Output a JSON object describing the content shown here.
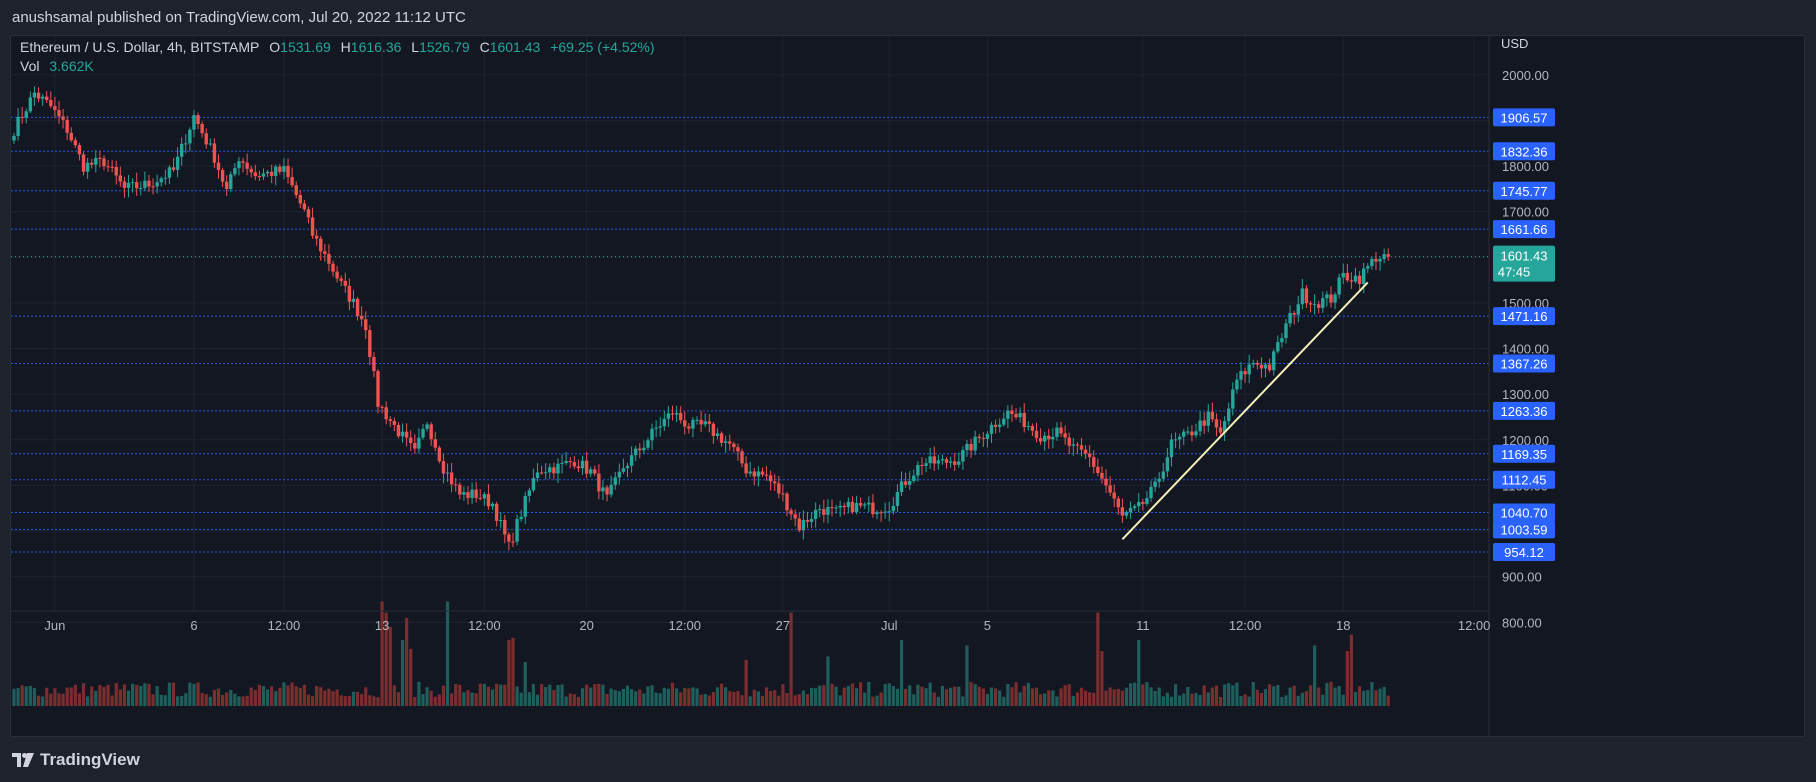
{
  "publisher": "anushsamal published on TradingView.com, Jul 20, 2022 11:12 UTC",
  "footer_brand": "TradingView",
  "legend": {
    "symbol": "Ethereum / U.S. Dollar, 4h, BITSTAMP",
    "o_label": "O",
    "o": "1531.69",
    "h_label": "H",
    "h": "1616.36",
    "l_label": "L",
    "l": "1526.79",
    "c_label": "C",
    "c": "1601.43",
    "change": "+69.25 (+4.52%)",
    "vol_label": "Vol",
    "vol": "3.662K"
  },
  "colors": {
    "up": "#26a69a",
    "down": "#ef5350",
    "up_vol": "#1f5f5b",
    "down_vol": "#7a2e2e",
    "level_line": "#2962ff",
    "trendline": "#f5f0b8",
    "price_tag": "#26a69a",
    "bg": "#131722"
  },
  "chart_data": {
    "type": "candlestick",
    "currency": "USD",
    "ylim": [
      770,
      2085
    ],
    "y_ticks": [
      "800.00",
      "900.00",
      "1000.00",
      "1100.00",
      "1200.00",
      "1300.00",
      "1400.00",
      "1500.00",
      "1600.00",
      "1700.00",
      "1800.00",
      "1900.00",
      "2000.00"
    ],
    "x_ticks": [
      "Jun",
      "6",
      "12:00",
      "13",
      "12:00",
      "20",
      "12:00",
      "27",
      "Jul",
      "5",
      "11",
      "12:00",
      "18",
      "12:00"
    ],
    "horizontal_levels": [
      "1906.57",
      "1832.36",
      "1745.77",
      "1661.66",
      "1471.16",
      "1367.26",
      "1263.36",
      "1169.35",
      "1112.45",
      "1040.70",
      "1003.59",
      "954.12"
    ],
    "last_price": "1601.43",
    "countdown": "47:45",
    "trendline": {
      "from": {
        "index": 271,
        "price": 982
      },
      "to": {
        "index": 331,
        "price": 1545
      }
    },
    "anchors": [
      [
        0,
        1880
      ],
      [
        5,
        1960
      ],
      [
        9,
        1930
      ],
      [
        13,
        1880
      ],
      [
        17,
        1800
      ],
      [
        22,
        1810
      ],
      [
        27,
        1750
      ],
      [
        33,
        1760
      ],
      [
        39,
        1790
      ],
      [
        44,
        1910
      ],
      [
        49,
        1820
      ],
      [
        52,
        1745
      ],
      [
        55,
        1820
      ],
      [
        59,
        1780
      ],
      [
        66,
        1790
      ],
      [
        71,
        1700
      ],
      [
        73,
        1650
      ],
      [
        77,
        1590
      ],
      [
        80,
        1540
      ],
      [
        83,
        1500
      ],
      [
        86,
        1450
      ],
      [
        89,
        1280
      ],
      [
        93,
        1230
      ],
      [
        98,
        1170
      ],
      [
        101,
        1240
      ],
      [
        105,
        1140
      ],
      [
        109,
        1080
      ],
      [
        113,
        1080
      ],
      [
        117,
        1060
      ],
      [
        121,
        965
      ],
      [
        124,
        1040
      ],
      [
        128,
        1135
      ],
      [
        133,
        1140
      ],
      [
        137,
        1155
      ],
      [
        141,
        1130
      ],
      [
        145,
        1070
      ],
      [
        149,
        1140
      ],
      [
        154,
        1190
      ],
      [
        157,
        1225
      ],
      [
        161,
        1260
      ],
      [
        165,
        1230
      ],
      [
        169,
        1230
      ],
      [
        175,
        1190
      ],
      [
        179,
        1135
      ],
      [
        184,
        1120
      ],
      [
        188,
        1075
      ],
      [
        192,
        1010
      ],
      [
        197,
        1050
      ],
      [
        201,
        1040
      ],
      [
        205,
        1055
      ],
      [
        210,
        1050
      ],
      [
        214,
        1055
      ],
      [
        218,
        1110
      ],
      [
        222,
        1150
      ],
      [
        227,
        1150
      ],
      [
        231,
        1160
      ],
      [
        235,
        1195
      ],
      [
        239,
        1230
      ],
      [
        243,
        1260
      ],
      [
        247,
        1240
      ],
      [
        251,
        1210
      ],
      [
        255,
        1215
      ],
      [
        259,
        1180
      ],
      [
        263,
        1160
      ],
      [
        267,
        1100
      ],
      [
        271,
        1030
      ],
      [
        275,
        1050
      ],
      [
        279,
        1095
      ],
      [
        283,
        1190
      ],
      [
        287,
        1210
      ],
      [
        292,
        1250
      ],
      [
        295,
        1210
      ],
      [
        299,
        1330
      ],
      [
        303,
        1370
      ],
      [
        307,
        1360
      ],
      [
        311,
        1450
      ],
      [
        315,
        1520
      ],
      [
        318,
        1500
      ],
      [
        322,
        1510
      ],
      [
        325,
        1560
      ],
      [
        329,
        1555
      ],
      [
        333,
        1601
      ]
    ],
    "volume_spikes": {
      "90": 0.95,
      "91": 0.85,
      "92": 0.72,
      "95": 0.6,
      "96": 0.8,
      "97": 0.52,
      "106": 0.95,
      "121": 0.6,
      "122": 0.62,
      "125": 0.4,
      "179": 0.42,
      "190": 0.85,
      "199": 0.45,
      "217": 0.6,
      "233": 0.55,
      "265": 0.85,
      "266": 0.5,
      "275": 0.6,
      "318": 0.55,
      "326": 0.5,
      "327": 0.65
    }
  }
}
